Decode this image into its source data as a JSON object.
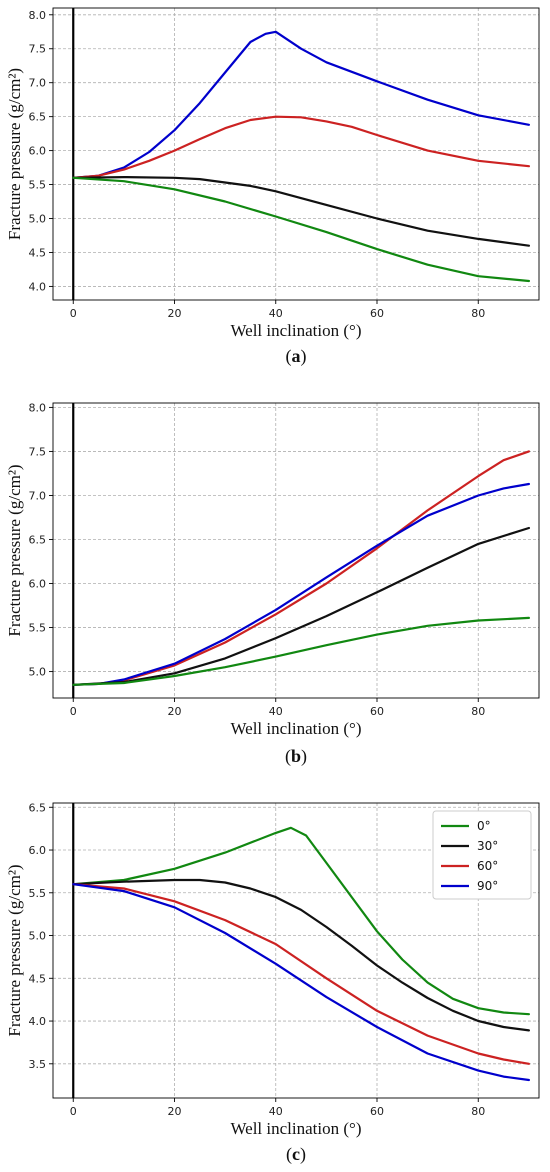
{
  "chart_data": [
    {
      "type": "line",
      "panel_label": "a",
      "xlabel": "Well inclination (°)",
      "ylabel": "Fracture pressure (g/cm²)",
      "xlim": [
        -4,
        92
      ],
      "ylim": [
        3.8,
        8.1
      ],
      "xticks": [
        0,
        20,
        40,
        60,
        80
      ],
      "yticks": [
        4.0,
        4.5,
        5.0,
        5.5,
        6.0,
        6.5,
        7.0,
        7.5,
        8.0
      ],
      "grid": true,
      "series": [
        {
          "color": "#0000cc",
          "x": [
            0,
            5,
            10,
            15,
            20,
            25,
            30,
            35,
            38,
            40,
            45,
            50,
            60,
            70,
            80,
            90
          ],
          "y": [
            5.6,
            5.63,
            5.75,
            5.98,
            6.3,
            6.7,
            7.15,
            7.6,
            7.72,
            7.75,
            7.5,
            7.3,
            7.02,
            6.75,
            6.52,
            6.38
          ]
        },
        {
          "color": "#cc2222",
          "x": [
            0,
            5,
            10,
            15,
            20,
            25,
            30,
            35,
            40,
            45,
            50,
            55,
            60,
            70,
            80,
            90
          ],
          "y": [
            5.6,
            5.63,
            5.72,
            5.85,
            6.0,
            6.17,
            6.33,
            6.45,
            6.5,
            6.49,
            6.43,
            6.35,
            6.23,
            6.0,
            5.85,
            5.77
          ]
        },
        {
          "color": "#111111",
          "x": [
            0,
            10,
            20,
            25,
            30,
            35,
            40,
            50,
            60,
            70,
            80,
            90
          ],
          "y": [
            5.6,
            5.61,
            5.6,
            5.58,
            5.53,
            5.48,
            5.4,
            5.2,
            5.0,
            4.82,
            4.7,
            4.6
          ]
        },
        {
          "color": "#118811",
          "x": [
            0,
            10,
            20,
            30,
            40,
            50,
            60,
            70,
            80,
            90
          ],
          "y": [
            5.6,
            5.55,
            5.43,
            5.25,
            5.03,
            4.8,
            4.55,
            4.32,
            4.15,
            4.08
          ]
        }
      ]
    },
    {
      "type": "line",
      "panel_label": "b",
      "xlabel": "Well inclination (°)",
      "ylabel": "Fracture pressure (g/cm²)",
      "xlim": [
        -4,
        92
      ],
      "ylim": [
        4.7,
        8.05
      ],
      "xticks": [
        0,
        20,
        40,
        60,
        80
      ],
      "yticks": [
        5.0,
        5.5,
        6.0,
        6.5,
        7.0,
        7.5,
        8.0
      ],
      "grid": true,
      "series": [
        {
          "color": "#cc2222",
          "x": [
            0,
            5,
            10,
            20,
            30,
            40,
            50,
            60,
            70,
            80,
            85,
            90
          ],
          "y": [
            4.85,
            4.86,
            4.9,
            5.07,
            5.33,
            5.65,
            6.0,
            6.4,
            6.83,
            7.22,
            7.4,
            7.5
          ]
        },
        {
          "color": "#0000cc",
          "x": [
            0,
            5,
            10,
            20,
            30,
            40,
            50,
            60,
            70,
            80,
            85,
            90
          ],
          "y": [
            4.85,
            4.86,
            4.91,
            5.09,
            5.37,
            5.7,
            6.07,
            6.43,
            6.77,
            7.0,
            7.08,
            7.13
          ]
        },
        {
          "color": "#111111",
          "x": [
            0,
            10,
            20,
            30,
            40,
            50,
            60,
            70,
            80,
            90
          ],
          "y": [
            4.85,
            4.88,
            4.98,
            5.15,
            5.38,
            5.63,
            5.9,
            6.18,
            6.45,
            6.63
          ]
        },
        {
          "color": "#118811",
          "x": [
            0,
            10,
            20,
            30,
            40,
            50,
            60,
            70,
            80,
            90
          ],
          "y": [
            4.85,
            4.87,
            4.95,
            5.05,
            5.17,
            5.3,
            5.42,
            5.52,
            5.58,
            5.61
          ]
        }
      ]
    },
    {
      "type": "line",
      "panel_label": "c",
      "xlabel": "Well inclination (°)",
      "ylabel": "Fracture pressure (g/cm²)",
      "xlim": [
        -4,
        92
      ],
      "ylim": [
        3.1,
        6.55
      ],
      "xticks": [
        0,
        20,
        40,
        60,
        80
      ],
      "yticks": [
        3.5,
        4.0,
        4.5,
        5.0,
        5.5,
        6.0,
        6.5
      ],
      "grid": true,
      "legend_position": "top-right",
      "series": [
        {
          "name": "0°",
          "color": "#118811",
          "x": [
            0,
            10,
            20,
            30,
            40,
            43,
            46,
            50,
            55,
            60,
            65,
            70,
            75,
            80,
            85,
            90
          ],
          "y": [
            5.6,
            5.65,
            5.78,
            5.97,
            6.2,
            6.26,
            6.17,
            5.85,
            5.45,
            5.05,
            4.72,
            4.45,
            4.26,
            4.15,
            4.1,
            4.08
          ]
        },
        {
          "name": "30°",
          "color": "#111111",
          "x": [
            0,
            10,
            20,
            25,
            30,
            35,
            40,
            45,
            50,
            55,
            60,
            65,
            70,
            75,
            80,
            85,
            90
          ],
          "y": [
            5.6,
            5.63,
            5.65,
            5.65,
            5.62,
            5.55,
            5.45,
            5.3,
            5.1,
            4.88,
            4.65,
            4.45,
            4.27,
            4.12,
            4.0,
            3.93,
            3.89
          ]
        },
        {
          "name": "60°",
          "color": "#cc2222",
          "x": [
            0,
            10,
            20,
            30,
            40,
            50,
            60,
            70,
            80,
            85,
            90
          ],
          "y": [
            5.6,
            5.55,
            5.4,
            5.18,
            4.9,
            4.5,
            4.12,
            3.83,
            3.62,
            3.55,
            3.5
          ]
        },
        {
          "name": "90°",
          "color": "#0000cc",
          "x": [
            0,
            10,
            20,
            30,
            40,
            50,
            60,
            70,
            80,
            85,
            90
          ],
          "y": [
            5.6,
            5.52,
            5.33,
            5.03,
            4.67,
            4.28,
            3.93,
            3.62,
            3.42,
            3.35,
            3.31
          ]
        }
      ]
    }
  ]
}
